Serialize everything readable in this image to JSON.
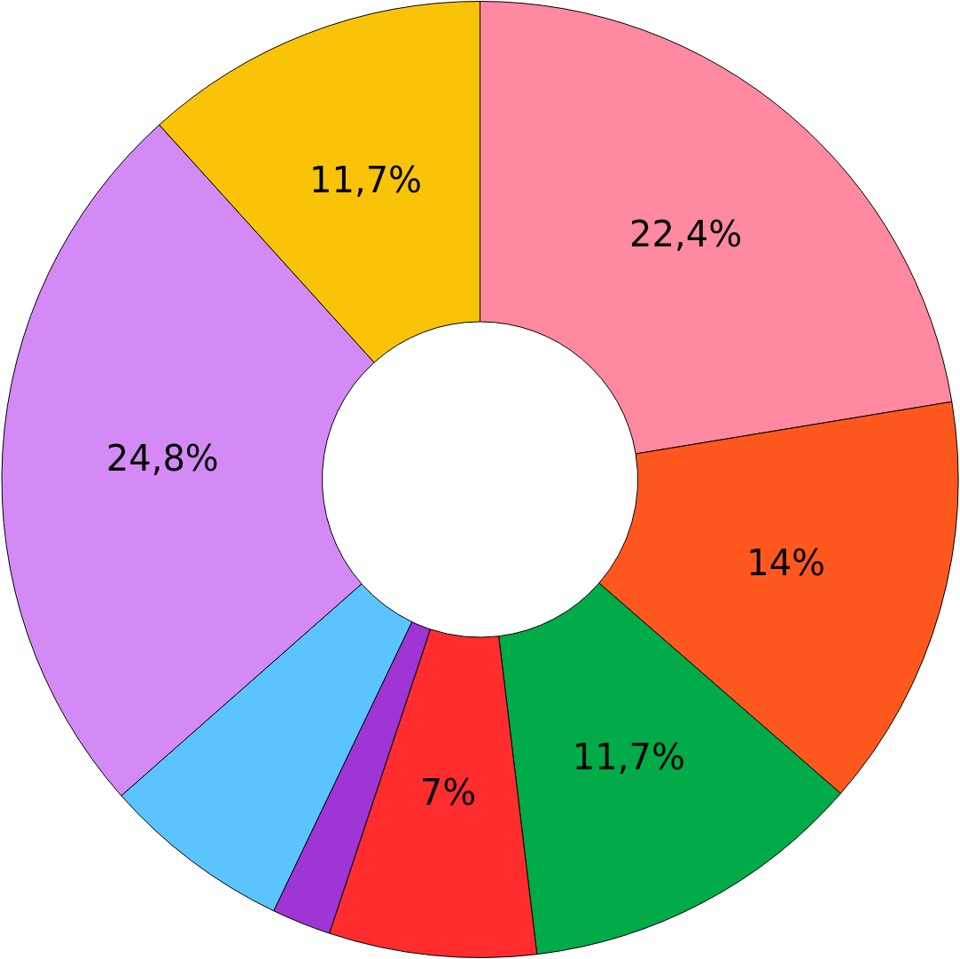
{
  "chart_data": {
    "type": "donut",
    "categories": [
      null,
      null,
      null,
      null,
      null,
      null,
      null,
      null
    ],
    "values": [
      22.4,
      14,
      11.7,
      7,
      2,
      6.4,
      24.8,
      11.7
    ],
    "colors": [
      "#ff89a0",
      "#ff581e",
      "#00ab48",
      "#ff2d2d",
      "#9e35d4",
      "#5bc4ff",
      "#d48af5",
      "#f9c408"
    ],
    "value_labels": [
      "22,4%",
      "14%",
      "11,7%",
      "7%",
      null,
      null,
      "24,8%",
      "11,7%"
    ],
    "legend": false
  }
}
